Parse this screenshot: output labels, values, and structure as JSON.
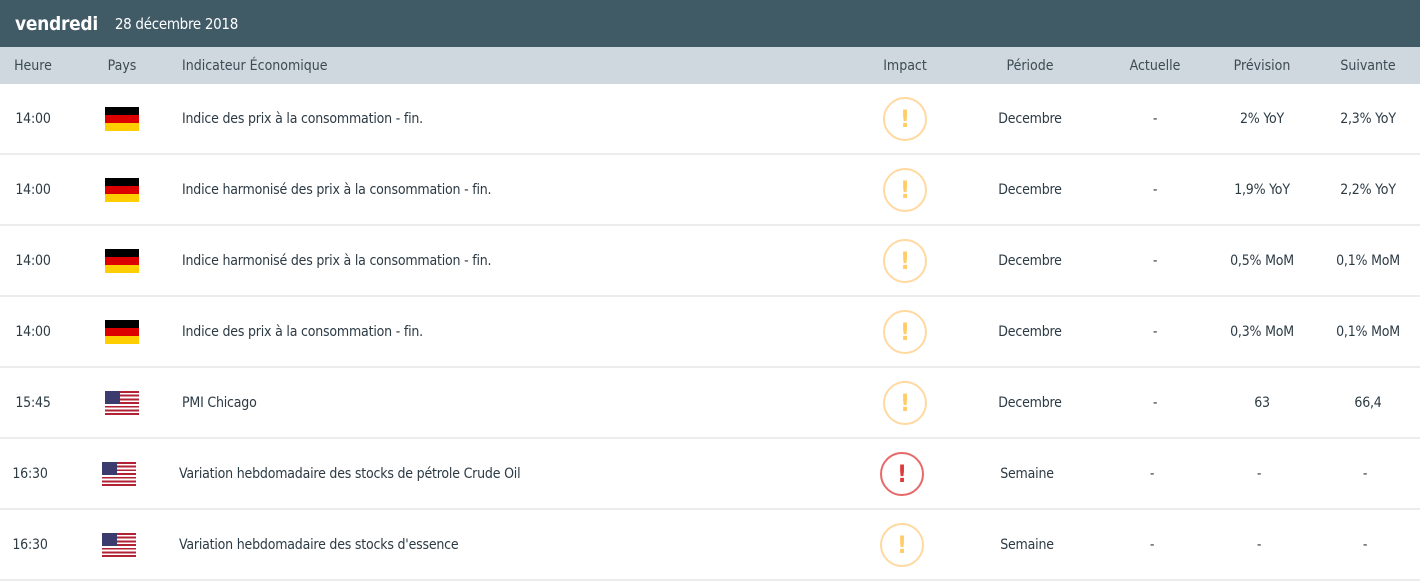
{
  "header": {
    "day": "vendredi",
    "date": "28 décembre 2018"
  },
  "columns": {
    "time": "Heure",
    "country": "Pays",
    "indicator": "Indicateur Économique",
    "impact": "Impact",
    "period": "Période",
    "actual": "Actuelle",
    "forecast": "Prévision",
    "next": "Suivante"
  },
  "colors": {
    "header_bg": "#405a66",
    "column_bg": "#cfd8de",
    "impact_medium": "#ffcc66",
    "impact_high": "#e0393c"
  },
  "rows": [
    {
      "time": "14:00",
      "country": "Allemagne",
      "flag": "de",
      "indicator": "Indice des prix à la consommation - fin.",
      "impact": "medium",
      "impact_icon": "!",
      "period": "Decembre",
      "actual": "-",
      "forecast": "2% YoY",
      "next": "2,3% YoY"
    },
    {
      "time": "14:00",
      "country": "Allemagne",
      "flag": "de",
      "indicator": "Indice harmonisé des prix à la consommation - fin.",
      "impact": "medium",
      "impact_icon": "!",
      "period": "Decembre",
      "actual": "-",
      "forecast": "1,9% YoY",
      "next": "2,2% YoY"
    },
    {
      "time": "14:00",
      "country": "Allemagne",
      "flag": "de",
      "indicator": "Indice harmonisé des prix à la consommation - fin.",
      "impact": "medium",
      "impact_icon": "!",
      "period": "Decembre",
      "actual": "-",
      "forecast": "0,5% MoM",
      "next": "0,1% MoM"
    },
    {
      "time": "14:00",
      "country": "Allemagne",
      "flag": "de",
      "indicator": "Indice des prix à la consommation - fin.",
      "impact": "medium",
      "impact_icon": "!",
      "period": "Decembre",
      "actual": "-",
      "forecast": "0,3% MoM",
      "next": "0,1% MoM"
    },
    {
      "time": "15:45",
      "country": "États-Unis",
      "flag": "us",
      "indicator": "PMI Chicago",
      "impact": "medium",
      "impact_icon": "!",
      "period": "Decembre",
      "actual": "-",
      "forecast": "63",
      "next": "66,4"
    },
    {
      "time": "16:30",
      "country": "États-Unis",
      "flag": "us",
      "indicator": "Variation hebdomadaire des stocks de pétrole Crude Oil",
      "impact": "high",
      "impact_icon": "!",
      "period": "Semaine",
      "actual": "-",
      "forecast": "-",
      "next": "-"
    },
    {
      "time": "16:30",
      "country": "États-Unis",
      "flag": "us",
      "indicator": "Variation hebdomadaire des stocks d'essence",
      "impact": "medium",
      "impact_icon": "!",
      "period": "Semaine",
      "actual": "-",
      "forecast": "-",
      "next": "-"
    }
  ]
}
